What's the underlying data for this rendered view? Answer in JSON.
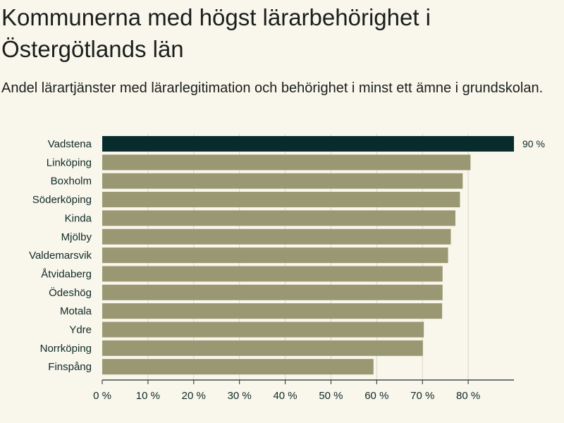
{
  "header": {
    "title": "Kommunerna med högst lärarbehörighet i Östergötlands län",
    "subtitle": "Andel lärartjänster med lärarlegitimation och behörighet i minst ett ämne i grundskolan."
  },
  "colors": {
    "highlight": "#082b2b",
    "bar": "#9a9872",
    "grid": "#d9d6cc",
    "axis": "#1f2a24",
    "background": "#f9f6ec"
  },
  "chart_data": {
    "type": "bar",
    "orientation": "horizontal",
    "title": "Kommunerna med högst lärarbehörighet i Östergötlands län",
    "subtitle": "Andel lärartjänster med lärarlegitimation och behörighet i minst ett ämne i grundskolan.",
    "categories": [
      "Vadstena",
      "Linköping",
      "Boxholm",
      "Söderköping",
      "Kinda",
      "Mjölby",
      "Valdemarsvik",
      "Åtvidaberg",
      "Ödeshög",
      "Motala",
      "Ydre",
      "Norrköping",
      "Finspång"
    ],
    "values": [
      90,
      80.5,
      78.8,
      78.2,
      77.2,
      76.2,
      75.6,
      74.4,
      74.4,
      74.3,
      70.3,
      70.1,
      59.3
    ],
    "highlight_index": 0,
    "data_labels": [
      "90 %"
    ],
    "xlim": [
      0,
      90
    ],
    "xticks": [
      0,
      10,
      20,
      30,
      40,
      50,
      60,
      70,
      80
    ],
    "xtick_labels": [
      "0 %",
      "10 %",
      "20 %",
      "30 %",
      "40 %",
      "50 %",
      "60 %",
      "70 %",
      "80 %"
    ],
    "xlabel": "",
    "ylabel": "",
    "grid": true,
    "legend": "none"
  }
}
